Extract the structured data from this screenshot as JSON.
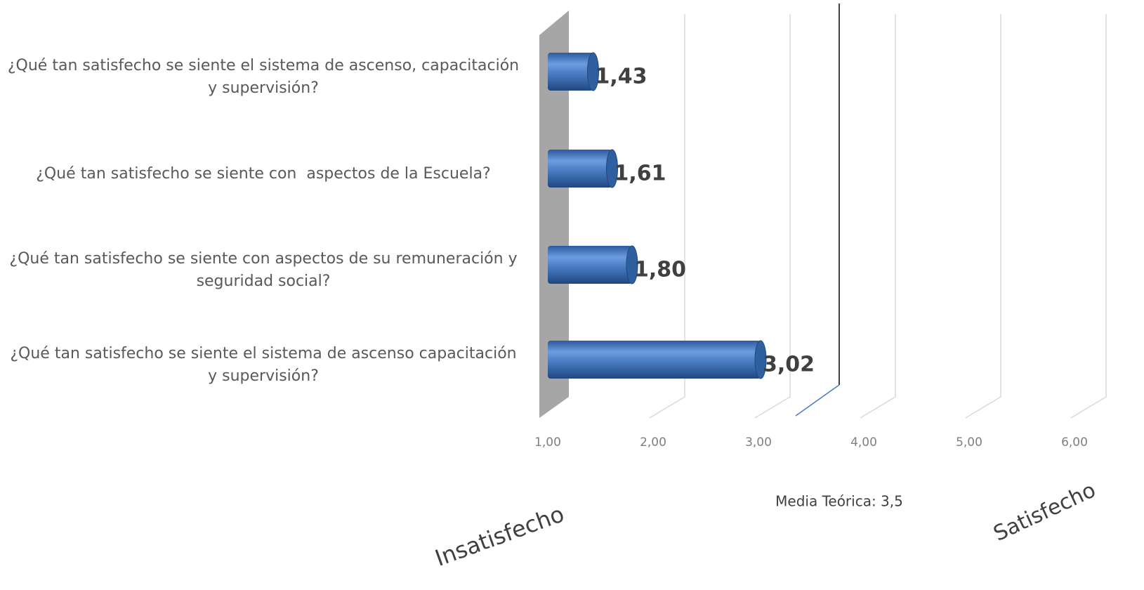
{
  "chart_data": {
    "type": "bar",
    "orientation": "horizontal",
    "categories": [
      "¿Qué tan satisfecho se siente el sistema de ascenso, capacitación y supervisión?",
      "¿Qué tan satisfecho se siente con  aspectos de la Escuela?",
      "¿Qué tan satisfecho se siente con aspectos de su remuneración y seguridad social?",
      "¿Qué tan satisfecho se siente el sistema de ascenso capacitación y supervisión?"
    ],
    "values": [
      1.43,
      1.61,
      1.8,
      3.02
    ],
    "value_labels": [
      "1,43",
      "1,61",
      "1,80",
      "3,02"
    ],
    "color": "#4a7cc4",
    "xlim": [
      1,
      6
    ],
    "xticks": [
      {
        "value": 1,
        "label": "1,00"
      },
      {
        "value": 2,
        "label": "2,00"
      },
      {
        "value": 3,
        "label": "3,00"
      },
      {
        "value": 4,
        "label": "4,00"
      },
      {
        "value": 5,
        "label": "5,00"
      },
      {
        "value": 6,
        "label": "6,00"
      }
    ],
    "grid": true,
    "reference_line": {
      "value": 3.5,
      "label": "Media Teórica: 3,5"
    },
    "annotations": [
      "Insatisfecho",
      "Satisfecho"
    ]
  }
}
